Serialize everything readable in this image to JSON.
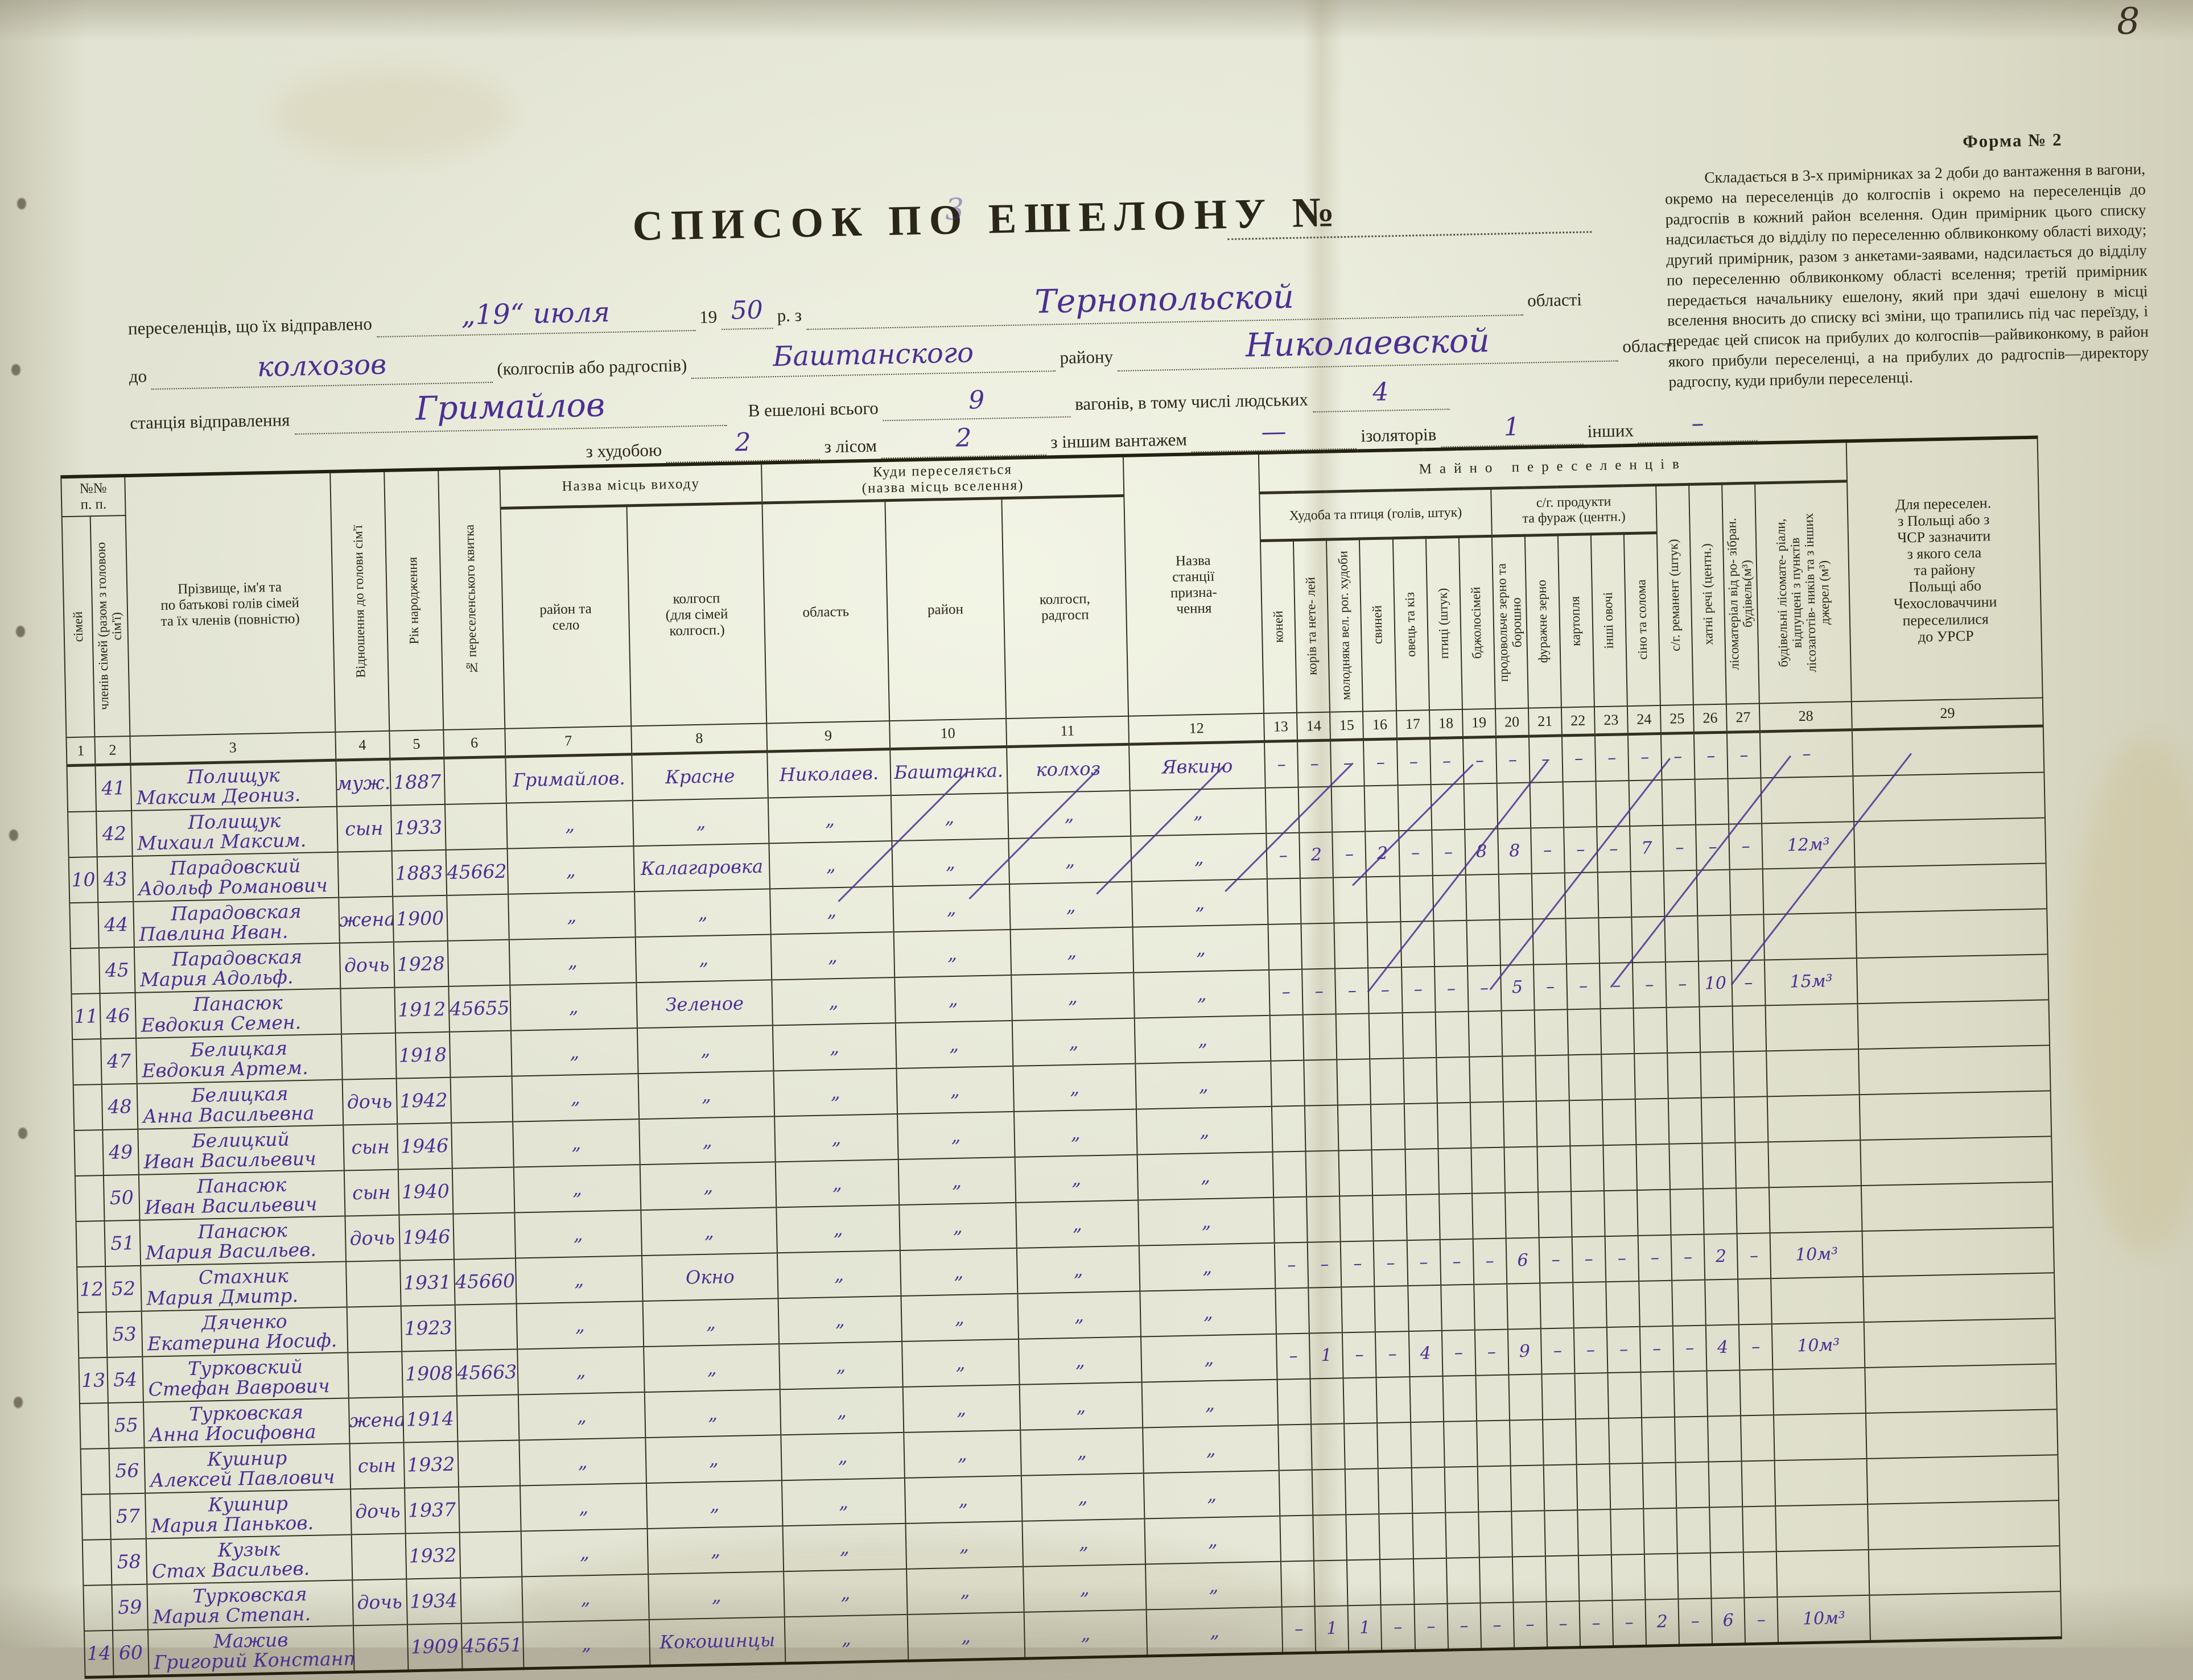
{
  "page_number": "8",
  "form_label": "Форма № 2",
  "title": {
    "text": "СПИСОК ПО ЕШЕЛОНУ №",
    "number_hw": "3"
  },
  "instructions": "Складається в 3-х примірниках за 2 доби до вантаження в вагони, окремо на переселенців до колгоспів і окремо на переселенців до радгоспів в кожний район вселення. Один примірник цього списку надсилається до відділу по переселенню облвиконкому області виходу; другий примірник, разом з анкетами-заявами, надсилається до відділу по переселенню облвиконкому області вселення; третій примірник передається начальнику ешелону, який при здачі ешелону в місці вселення вносить до списку всі зміни, що трапились під час переїзду, і передає цей список на прибулих до колгоспів—райвиконкому, в район якого прибули переселенці, а на прибулих до радгоспів—директору радгоспу, куди прибули переселенці.",
  "intro": {
    "l1_label": "переселенців, що їх відправлено",
    "l1_date_hw": "„19“ июля",
    "l1_year_prefix": "19",
    "l1_year_hw": "50",
    "l1_rz": "р. з",
    "l1_oblast_hw": "Тернопольской",
    "l1_oblast": "області",
    "l2_do": "до",
    "l2_to_hw": "колхозов",
    "l2_paren": "(колгоспів або радгоспів)",
    "l2_rayon_hw": "Баштанского",
    "l2_rayon": "району",
    "l2_oblast_hw": "Николаевской",
    "l2_oblast": "області",
    "l3_station_label": "станція відправлення",
    "l3_station_hw": "Гримайлов",
    "l3_total_label": "В ешелоні всього",
    "l3_total_hw": "9",
    "l3_wagons_label": "вагонів, в тому числі людських",
    "l3_people_hw": "4",
    "l4_cattle_label": "з худобою",
    "l4_cattle_hw": "2",
    "l4_forest_label": "з лісом",
    "l4_forest_hw": "2",
    "l4_other_label": "з іншим вантажем",
    "l4_other_hw": "—",
    "l4_isolators_label": "ізоляторів",
    "l4_isolators_hw": "1",
    "l4_others_label": "інших",
    "l4_others_hw": "–"
  },
  "table": {
    "headers": {
      "npp": "№№\nп. п.",
      "simei": "сімей",
      "chleniv": "членів сімей (разом з головою сім'ї)",
      "name": "Прізвище, ім'я та\nпо батькові голів сімей\nта їх членів (повністю)",
      "rel": "Відношення до голови сім'ї",
      "born": "Рік народження",
      "ticket": "№ переселенського квитка",
      "origin_group": "Назва місць виходу",
      "origin_rayon": "район та\nсело",
      "origin_kolhosp": "колгосп\n(для сімей\nколгосп.)",
      "dest_group": "Куди переселяється\n(назва місць вселення)",
      "dest_oblast": "область",
      "dest_rayon": "район",
      "dest_kolhosp": "колгосп,\nрадгосп",
      "station": "Назва\nстанції\nпризна-\nчення",
      "property_group": "Майно переселенців",
      "hudoba_group": "Худоба та птиця (голів, штук)",
      "c13": "коней",
      "c14": "корів та нете- лей",
      "c15": "молодняка вел. рог. худоби",
      "c16": "свиней",
      "c17": "овець та кіз",
      "c18": "птиці (штук)",
      "c19": "бджолосімей",
      "produkty_group": "с/г. продукти\nта фураж (центн.)",
      "c20": "продовольче зерно та борошно",
      "c21": "фуражне зерно",
      "c22": "картопля",
      "c23": "інші овочі",
      "c24": "сіно та солома",
      "c25": "с/г. реманент (штук)",
      "c26": "хатні речі (центн.)",
      "c27": "лісоматеріал від ро- зібран. будівель(м³)",
      "c28": "будівельні лісомате- ріали, відпущені з пунктів лісозаготів- ників та з інших джерел (м³)",
      "poland": "Для переселен.\nз Польщі або з\nЧСР зазначити\nз якого села\nта району\nПольщі або\nЧехословаччини\nпереселилися\nдо УРСР"
    },
    "col_numbers": [
      "1",
      "2",
      "3",
      "4",
      "5",
      "6",
      "7",
      "8",
      "9",
      "10",
      "11",
      "12",
      "13",
      "14",
      "15",
      "16",
      "17",
      "18",
      "19",
      "20",
      "21",
      "22",
      "23",
      "24",
      "25",
      "26",
      "27",
      "28",
      "29"
    ],
    "rows": [
      {
        "family_no": "",
        "member_no": "41",
        "surname": "Полищук",
        "given": "Максим Деониз.",
        "relation": "муж.",
        "born": "1887",
        "ticket": "",
        "origin": [
          "Гримайлов.",
          "Красне",
          "Николаев.",
          "Баштанка.",
          "колхоз",
          "Явкино"
        ],
        "vals": [
          "–",
          "–",
          "–",
          "–",
          "–",
          "–",
          "–",
          "–",
          "–",
          "–",
          "–",
          "–",
          "–",
          "–",
          "–",
          "–"
        ],
        "note": ""
      },
      {
        "family_no": "",
        "member_no": "42",
        "surname": "Полищук",
        "given": "Михаил Максим.",
        "relation": "сын",
        "born": "1933",
        "ticket": "",
        "origin": [
          "„",
          "„",
          "„",
          "„",
          "„",
          "„"
        ],
        "vals": [],
        "note": ""
      },
      {
        "family_no": "10",
        "member_no": "43",
        "surname": "Парадовский",
        "given": "Адольф Романович",
        "relation": "",
        "born": "1883",
        "ticket": "45662",
        "origin": [
          "„",
          "Калагаровка",
          "„",
          "„",
          "„",
          "„"
        ],
        "vals": [
          "–",
          "2",
          "–",
          "2",
          "–",
          "–",
          "8",
          "8",
          "–",
          "–",
          "–",
          "7",
          "–",
          "–",
          "–",
          "12м³"
        ],
        "note": ""
      },
      {
        "family_no": "",
        "member_no": "44",
        "surname": "Парадовская",
        "given": "Павлина Иван.",
        "relation": "жена",
        "born": "1900",
        "ticket": "",
        "origin": [
          "„",
          "„",
          "„",
          "„",
          "„",
          "„"
        ],
        "vals": [],
        "note": ""
      },
      {
        "family_no": "",
        "member_no": "45",
        "surname": "Парадовская",
        "given": "Мария Адольф.",
        "relation": "дочь",
        "born": "1928",
        "ticket": "",
        "origin": [
          "„",
          "„",
          "„",
          "„",
          "„",
          "„"
        ],
        "vals": [],
        "note": ""
      },
      {
        "family_no": "11",
        "member_no": "46",
        "surname": "Панасюк",
        "given": "Евдокия Семен.",
        "relation": "",
        "born": "1912",
        "ticket": "45655",
        "origin": [
          "„",
          "Зеленое",
          "„",
          "„",
          "„",
          "„"
        ],
        "vals": [
          "–",
          "–",
          "–",
          "–",
          "–",
          "–",
          "–",
          "5",
          "–",
          "–",
          "–",
          "–",
          "–",
          "10",
          "–",
          "15м³"
        ],
        "note": ""
      },
      {
        "family_no": "",
        "member_no": "47",
        "surname": "Белицкая",
        "given": "Евдокия Артем.",
        "relation": "",
        "born": "1918",
        "ticket": "",
        "origin": [
          "„",
          "„",
          "„",
          "„",
          "„",
          "„"
        ],
        "vals": [],
        "note": ""
      },
      {
        "family_no": "",
        "member_no": "48",
        "surname": "Белицкая",
        "given": "Анна Васильевна",
        "relation": "дочь",
        "born": "1942",
        "ticket": "",
        "origin": [
          "„",
          "„",
          "„",
          "„",
          "„",
          "„"
        ],
        "vals": [],
        "note": ""
      },
      {
        "family_no": "",
        "member_no": "49",
        "surname": "Белицкий",
        "given": "Иван Васильевич",
        "relation": "сын",
        "born": "1946",
        "ticket": "",
        "origin": [
          "„",
          "„",
          "„",
          "„",
          "„",
          "„"
        ],
        "vals": [],
        "note": ""
      },
      {
        "family_no": "",
        "member_no": "50",
        "surname": "Панасюк",
        "given": "Иван Васильевич",
        "relation": "сын",
        "born": "1940",
        "ticket": "",
        "origin": [
          "„",
          "„",
          "„",
          "„",
          "„",
          "„"
        ],
        "vals": [],
        "note": ""
      },
      {
        "family_no": "",
        "member_no": "51",
        "surname": "Панасюк",
        "given": "Мария Васильев.",
        "relation": "дочь",
        "born": "1946",
        "ticket": "",
        "origin": [
          "„",
          "„",
          "„",
          "„",
          "„",
          "„"
        ],
        "vals": [],
        "note": ""
      },
      {
        "family_no": "12",
        "member_no": "52",
        "surname": "Стахник",
        "given": "Мария Дмитр.",
        "relation": "",
        "born": "1931",
        "ticket": "45660",
        "origin": [
          "„",
          "Окно",
          "„",
          "„",
          "„",
          "„"
        ],
        "vals": [
          "–",
          "–",
          "–",
          "–",
          "–",
          "–",
          "–",
          "6",
          "–",
          "–",
          "–",
          "–",
          "–",
          "2",
          "–",
          "10м³"
        ],
        "note": ""
      },
      {
        "family_no": "",
        "member_no": "53",
        "surname": "Дяченко",
        "given": "Екатерина Иосиф.",
        "relation": "",
        "born": "1923",
        "ticket": "",
        "origin": [
          "„",
          "„",
          "„",
          "„",
          "„",
          "„"
        ],
        "vals": [],
        "note": ""
      },
      {
        "family_no": "13",
        "member_no": "54",
        "surname": "Турковский",
        "given": "Стефан Ваврович",
        "relation": "",
        "born": "1908",
        "ticket": "45663",
        "origin": [
          "„",
          "„",
          "„",
          "„",
          "„",
          "„"
        ],
        "vals": [
          "–",
          "1",
          "–",
          "–",
          "4",
          "–",
          "–",
          "9",
          "–",
          "–",
          "–",
          "–",
          "–",
          "4",
          "–",
          "10м³"
        ],
        "note": ""
      },
      {
        "family_no": "",
        "member_no": "55",
        "surname": "Турковская",
        "given": "Анна Иосифовна",
        "relation": "жена",
        "born": "1914",
        "ticket": "",
        "origin": [
          "„",
          "„",
          "„",
          "„",
          "„",
          "„"
        ],
        "vals": [],
        "note": ""
      },
      {
        "family_no": "",
        "member_no": "56",
        "surname": "Кушнир",
        "given": "Алексей Павлович",
        "relation": "сын",
        "born": "1932",
        "ticket": "",
        "origin": [
          "„",
          "„",
          "„",
          "„",
          "„",
          "„"
        ],
        "vals": [],
        "note": ""
      },
      {
        "family_no": "",
        "member_no": "57",
        "surname": "Кушнир",
        "given": "Мария Паньков.",
        "relation": "дочь",
        "born": "1937",
        "ticket": "",
        "origin": [
          "„",
          "„",
          "„",
          "„",
          "„",
          "„"
        ],
        "vals": [],
        "note": ""
      },
      {
        "family_no": "",
        "member_no": "58",
        "surname": "Кузык",
        "given": "Стах Васильев.",
        "relation": "",
        "born": "1932",
        "ticket": "",
        "origin": [
          "„",
          "„",
          "„",
          "„",
          "„",
          "„"
        ],
        "vals": [],
        "note": ""
      },
      {
        "family_no": "",
        "member_no": "59",
        "surname": "Турковская",
        "given": "Мария Степан.",
        "relation": "дочь",
        "born": "1934",
        "ticket": "",
        "origin": [
          "„",
          "„",
          "„",
          "„",
          "„",
          "„"
        ],
        "vals": [],
        "note": ""
      },
      {
        "family_no": "14",
        "member_no": "60",
        "surname": "Мажив",
        "given": "Григорий Констант.",
        "relation": "",
        "born": "1909",
        "ticket": "45651",
        "origin": [
          "„",
          "Кокошинцы",
          "„",
          "„",
          "„",
          "„"
        ],
        "vals": [
          "–",
          "1",
          "1",
          "–",
          "–",
          "–",
          "–",
          "–",
          "–",
          "–",
          "–",
          "2",
          "–",
          "6",
          "–",
          "10м³"
        ],
        "note": ""
      }
    ]
  }
}
